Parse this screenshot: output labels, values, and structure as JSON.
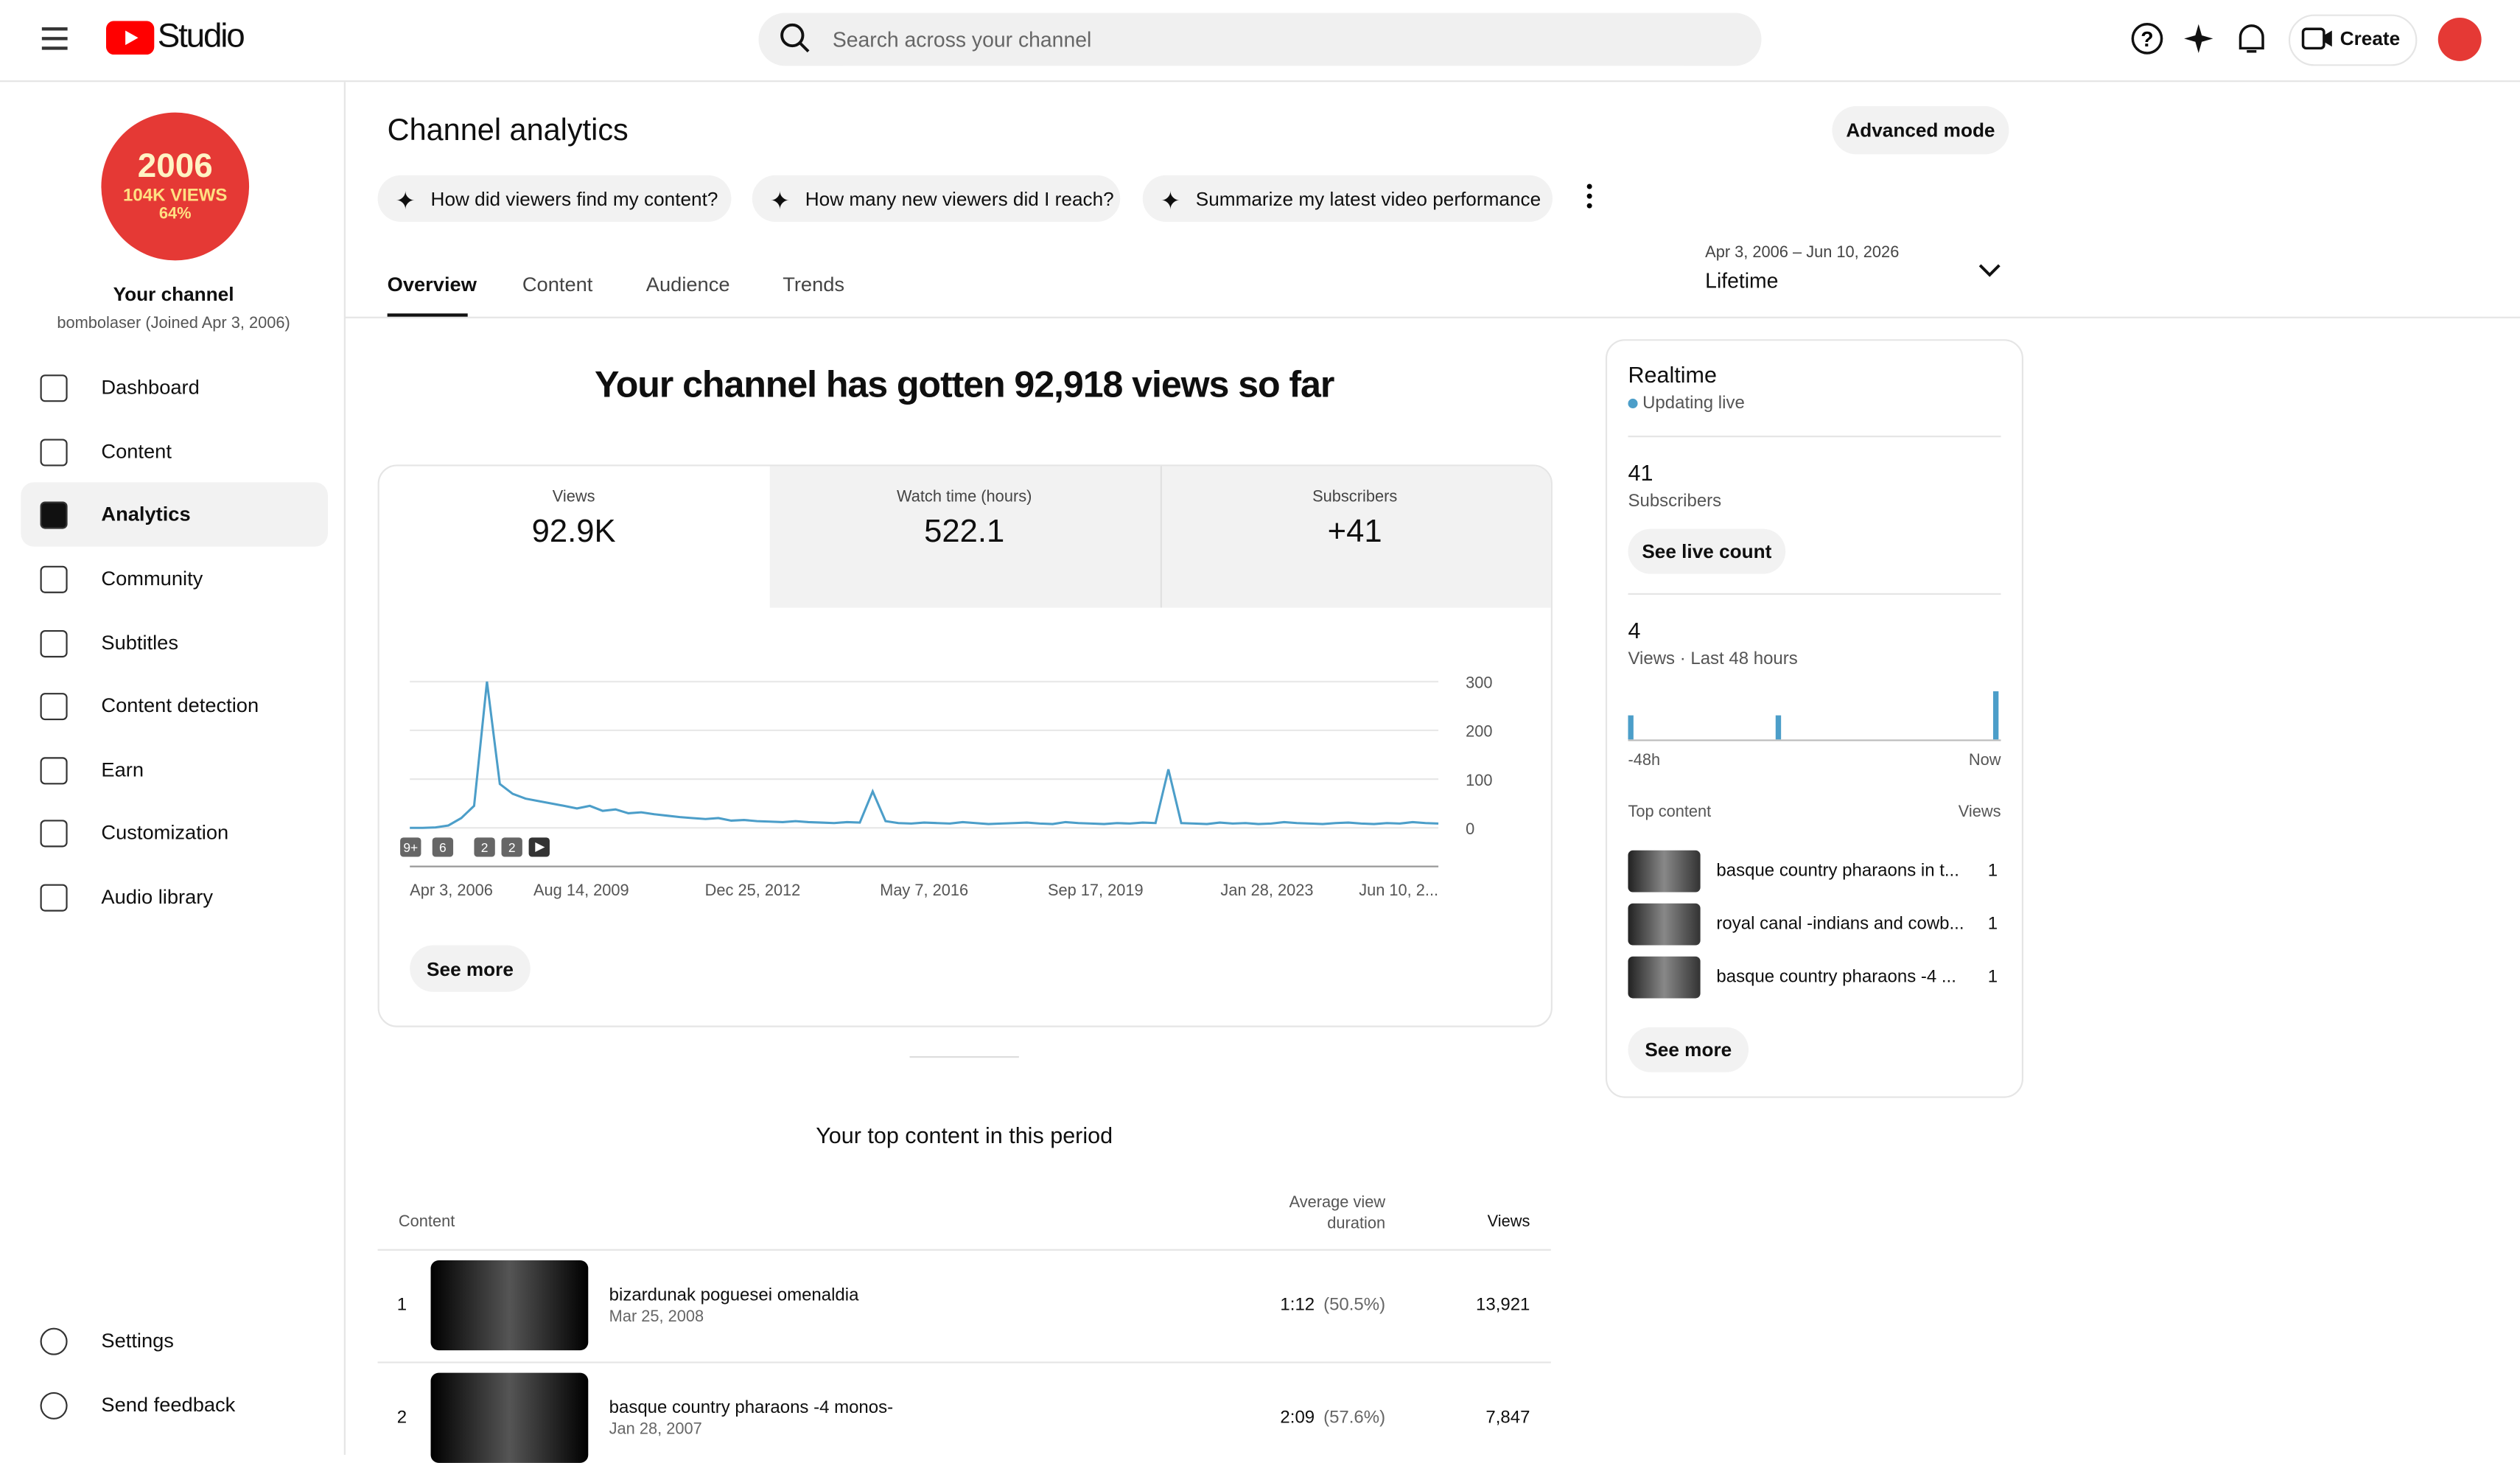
{
  "header": {
    "app": "Studio",
    "search_placeholder": "Search across your channel",
    "create": "Create"
  },
  "sidebar": {
    "avatar": {
      "line1": "2006",
      "line2": "104K VIEWS",
      "line3": "64%"
    },
    "channel_label": "Your channel",
    "channel_sub": "bombolaser (Joined Apr 3, 2006)",
    "items": [
      "Dashboard",
      "Content",
      "Analytics",
      "Community",
      "Subtitles",
      "Content detection",
      "Earn",
      "Customization",
      "Audio library"
    ],
    "bottom_items": [
      "Settings",
      "Send feedback"
    ]
  },
  "main": {
    "title": "Channel analytics",
    "advanced": "Advanced mode",
    "prompts": [
      "How did viewers find my content?",
      "How many new viewers did I reach?",
      "Summarize my latest video performance"
    ],
    "tabs": [
      "Overview",
      "Content",
      "Audience",
      "Trends"
    ],
    "date_range": "Apr 3, 2006 – Jun 10, 2026",
    "period": "Lifetime",
    "headline": "Your channel has gotten 92,918 views so far",
    "metrics": [
      {
        "label": "Views",
        "value": "92.9K"
      },
      {
        "label": "Watch time (hours)",
        "value": "522.1"
      },
      {
        "label": "Subscribers",
        "value": "+41"
      }
    ],
    "see_more": "See more",
    "top_content": {
      "title": "Your top content in this period",
      "headers": [
        "Content",
        "Average view duration",
        "Views"
      ],
      "rows": [
        [
          "1",
          "bizardunak poguesei omenaldia",
          "Mar 25, 2008",
          "1:12",
          "(50.5%)",
          "13,921"
        ],
        [
          "2",
          "basque country pharaons -4 monos-",
          "Jan 28, 2007",
          "2:09",
          "(57.6%)",
          "7,847"
        ]
      ]
    }
  },
  "realtime": {
    "title": "Realtime",
    "status": "Updating live",
    "subs": "41",
    "subs_label": "Subscribers",
    "live_button": "See live count",
    "views": "4",
    "views_label": "Views · Last 48 hours",
    "x_start": "-48h",
    "x_end": "Now",
    "top_label": "Top content",
    "views_header": "Views",
    "items": [
      [
        "basque country pharaons in t...",
        "1"
      ],
      [
        "royal canal -indians and cowb...",
        "1"
      ],
      [
        "basque country pharaons -4 ...",
        "1"
      ]
    ],
    "see_more": "See more"
  },
  "chart_data": [
    {
      "type": "line",
      "color": "#4c9ec9",
      "ylim": [
        0,
        300
      ],
      "yticks": [
        0,
        100,
        200,
        300
      ],
      "grid": true,
      "x_labels": [
        "Apr 3, 2006",
        "Aug 14, 2009",
        "Dec 25, 2012",
        "May 7, 2016",
        "Sep 17, 2019",
        "Jan 28, 2023",
        "Jun 10, 2..."
      ],
      "annotations": [
        "9+",
        "6",
        "2",
        "2"
      ],
      "values": [
        0,
        0,
        1,
        5,
        20,
        45,
        300,
        90,
        70,
        60,
        55,
        50,
        45,
        40,
        45,
        35,
        38,
        30,
        32,
        28,
        25,
        22,
        20,
        18,
        20,
        15,
        16,
        14,
        13,
        12,
        14,
        12,
        11,
        10,
        12,
        11,
        75,
        14,
        10,
        9,
        11,
        10,
        9,
        12,
        10,
        8,
        9,
        10,
        11,
        9,
        8,
        12,
        10,
        9,
        8,
        10,
        9,
        11,
        10,
        120,
        10,
        9,
        8,
        11,
        9,
        10,
        8,
        9,
        12,
        10,
        9,
        8,
        10,
        11,
        9,
        8,
        10,
        9,
        12,
        10,
        9
      ]
    },
    {
      "type": "bar",
      "color": "#4c9ec9",
      "values": [
        1,
        0,
        0,
        0,
        0,
        0,
        0,
        0,
        0,
        0,
        0,
        0,
        0,
        0,
        0,
        0,
        0,
        0,
        0,
        1,
        0,
        0,
        0,
        0,
        0,
        0,
        0,
        0,
        0,
        0,
        0,
        0,
        0,
        0,
        0,
        0,
        0,
        0,
        0,
        0,
        0,
        0,
        0,
        0,
        0,
        0,
        0,
        2
      ]
    }
  ]
}
